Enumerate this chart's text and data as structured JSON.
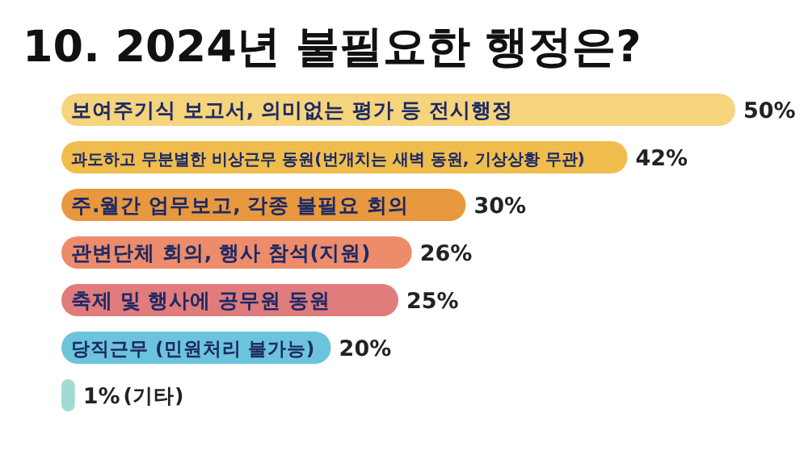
{
  "chart_data": {
    "type": "bar",
    "orientation": "horizontal",
    "title": "10. 2024년 불필요한 행정은?",
    "categories": [
      "보여주기식 보고서, 의미없는 평가 등 전시행정",
      "과도하고 무분별한 비상근무 동원(번개치는 새벽 동원, 기상상황 무관)",
      "주.월간 업무보고, 각종 불필요 회의",
      "관변단체 회의, 행사 참석(지원)",
      "축제 및 행사에 공무원 동원",
      "당직근무 (민원처리 불가능)",
      "(기타)"
    ],
    "values": [
      50,
      42,
      30,
      26,
      25,
      20,
      1
    ],
    "value_labels": [
      "50%",
      "42%",
      "30%",
      "26%",
      "25%",
      "20%",
      "1%"
    ],
    "colors": [
      "#f5d47c",
      "#f0bd4c",
      "#e8983e",
      "#ec8c6a",
      "#e07c7c",
      "#6cc4dc",
      "#a0dcd4"
    ]
  }
}
